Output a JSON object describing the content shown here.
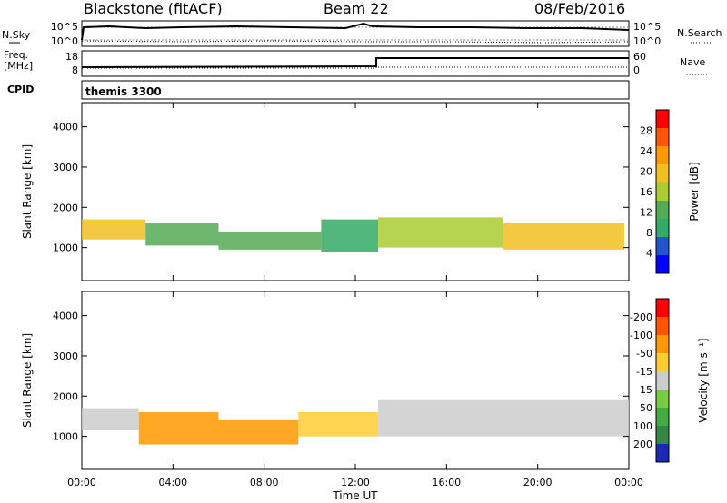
{
  "header": {
    "title": "Blackstone (fitACF)",
    "beam": "Beam 22",
    "date": "08/Feb/2016"
  },
  "strip_panels": {
    "nsky_label": "N.Sky",
    "nsearch_label": "N.Search",
    "freq_label_1": "Freq.",
    "freq_label_2": "[MHz]",
    "nave_label": "Nave",
    "cpid_label": "CPID",
    "cpid_value": "themis 3300",
    "left_ticks_noise": [
      "10^5",
      "10^0"
    ],
    "right_ticks_noise": [
      "10^5",
      "10^0"
    ],
    "left_ticks_freq": [
      "18",
      "8"
    ],
    "right_ticks_nave": [
      "60",
      "0"
    ]
  },
  "chart_data": [
    {
      "type": "heatmap",
      "name": "power-panel",
      "ylabel": "Slant Range [km]",
      "xlabel": "",
      "x_ticks": [
        "00:00",
        "04:00",
        "08:00",
        "12:00",
        "16:00",
        "20:00",
        "00:00"
      ],
      "y_ticks": [
        "1000",
        "2000",
        "3000",
        "4000"
      ],
      "xlim_hours": [
        0,
        24
      ],
      "ylim_km": [
        180,
        4600
      ],
      "colorbar": {
        "label": "Power [dB]",
        "ticks": [
          "4",
          "8",
          "12",
          "16",
          "20",
          "24",
          "28"
        ],
        "colors": [
          "#0000ff",
          "#2255cc",
          "#33aa66",
          "#55aa55",
          "#aacc33",
          "#f0c020",
          "#ff9900",
          "#ff5500",
          "#ff0000"
        ]
      },
      "bands": [
        {
          "t_start": 0.0,
          "t_end": 2.8,
          "range_km": [
            1200,
            1700
          ],
          "level_db": 18
        },
        {
          "t_start": 2.8,
          "t_end": 6.0,
          "range_km": [
            1050,
            1600
          ],
          "level_db": 14
        },
        {
          "t_start": 6.0,
          "t_end": 10.5,
          "range_km": [
            950,
            1400
          ],
          "level_db": 12
        },
        {
          "t_start": 10.5,
          "t_end": 13.0,
          "range_km": [
            900,
            1700
          ],
          "level_db": 10
        },
        {
          "t_start": 13.0,
          "t_end": 18.5,
          "range_km": [
            1000,
            1750
          ],
          "level_db": 16
        },
        {
          "t_start": 18.5,
          "t_end": 23.8,
          "range_km": [
            950,
            1600
          ],
          "level_db": 20
        }
      ]
    },
    {
      "type": "heatmap",
      "name": "velocity-panel",
      "ylabel": "Slant Range [km]",
      "xlabel": "Time UT",
      "x_ticks": [
        "00:00",
        "04:00",
        "08:00",
        "12:00",
        "16:00",
        "20:00",
        "00:00"
      ],
      "y_ticks": [
        "1000",
        "2000",
        "3000",
        "4000"
      ],
      "xlim_hours": [
        0,
        24
      ],
      "ylim_km": [
        180,
        4600
      ],
      "colorbar": {
        "label": "Velocity [m s⁻¹]",
        "ticks": [
          "200",
          "100",
          "50",
          "15",
          "-15",
          "-50",
          "-100",
          "-200"
        ],
        "colors": [
          "#1a2ab0",
          "#338844",
          "#44aa44",
          "#77cc44",
          "#cccccc",
          "#ffcc33",
          "#ff9900",
          "#ff5500",
          "#ff0000"
        ]
      },
      "bands": [
        {
          "t_start": 0.0,
          "t_end": 2.5,
          "range_km": [
            1150,
            1700
          ],
          "velocity": 0
        },
        {
          "t_start": 2.5,
          "t_end": 6.0,
          "range_km": [
            800,
            1600
          ],
          "velocity": -90
        },
        {
          "t_start": 6.0,
          "t_end": 9.5,
          "range_km": [
            800,
            1400
          ],
          "velocity": -60
        },
        {
          "t_start": 9.5,
          "t_end": 13.0,
          "range_km": [
            1000,
            1600
          ],
          "velocity": -30
        },
        {
          "t_start": 13.0,
          "t_end": 24.0,
          "range_km": [
            1000,
            1900
          ],
          "velocity": 0
        }
      ]
    }
  ]
}
